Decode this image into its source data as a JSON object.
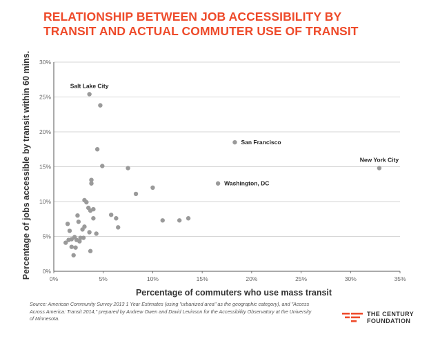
{
  "header": {
    "title_line1": "RELATIONSHIP BETWEEN JOB ACCESSIBILITY BY",
    "title_line2": "TRANSIT AND ACTUAL COMMUTER USE OF TRANSIT"
  },
  "footer": {
    "source": "Source:  American Community Survey 2013 1 Year Estimates (using \"urbanized area\" as the geographic category), and \"Access Across America: Transit 2014,\" prepared by Andrew Owen and David Levinson for the Accessibility Observatory at the University of Minnesota."
  },
  "logo": {
    "line1": "THE CENTURY",
    "line2": "FOUNDATION",
    "color": "#ee4b2b"
  },
  "colors": {
    "accent": "#ee4b2b",
    "point": "#9a9a9a",
    "grid": "#c8c8c8",
    "axis": "#555555"
  },
  "chart_data": {
    "type": "scatter",
    "title": "Relationship between job accessibility by transit and actual commuter use of transit",
    "xlabel": "Percentage of commuters who use mass transit",
    "ylabel": "Percentage of jobs accessible by transit within 60 mins.",
    "xlim": [
      0,
      35
    ],
    "ylim": [
      0,
      30
    ],
    "x_ticks": [
      0,
      5,
      10,
      15,
      20,
      25,
      30,
      35
    ],
    "x_tick_labels": [
      "0%",
      "5%",
      "10%",
      "15%",
      "20%",
      "25%",
      "30%",
      "35%"
    ],
    "y_ticks": [
      0,
      5,
      10,
      15,
      20,
      25,
      30
    ],
    "y_tick_labels": [
      "0%",
      "5%",
      "10%",
      "15%",
      "20%",
      "25%",
      "30%"
    ],
    "grid": "horizontal",
    "points": [
      {
        "x": 3.6,
        "y": 25.4,
        "label": "Salt Lake City"
      },
      {
        "x": 4.7,
        "y": 23.8
      },
      {
        "x": 18.3,
        "y": 18.5,
        "label": "San Francisco"
      },
      {
        "x": 32.9,
        "y": 14.8,
        "label": "New York City"
      },
      {
        "x": 16.6,
        "y": 12.6,
        "label": "Washington, DC"
      },
      {
        "x": 4.4,
        "y": 17.5
      },
      {
        "x": 4.9,
        "y": 15.1
      },
      {
        "x": 7.5,
        "y": 14.8
      },
      {
        "x": 10.0,
        "y": 12.0
      },
      {
        "x": 8.3,
        "y": 11.1
      },
      {
        "x": 3.8,
        "y": 13.1
      },
      {
        "x": 3.8,
        "y": 12.6
      },
      {
        "x": 3.1,
        "y": 10.2
      },
      {
        "x": 3.3,
        "y": 9.9
      },
      {
        "x": 3.5,
        "y": 9.1
      },
      {
        "x": 3.7,
        "y": 8.7
      },
      {
        "x": 4.0,
        "y": 8.9
      },
      {
        "x": 2.4,
        "y": 8.0
      },
      {
        "x": 5.8,
        "y": 8.1
      },
      {
        "x": 6.3,
        "y": 7.6
      },
      {
        "x": 4.0,
        "y": 7.6
      },
      {
        "x": 2.5,
        "y": 7.1
      },
      {
        "x": 1.4,
        "y": 6.8
      },
      {
        "x": 6.5,
        "y": 6.3
      },
      {
        "x": 3.1,
        "y": 6.4
      },
      {
        "x": 2.9,
        "y": 6.0
      },
      {
        "x": 1.6,
        "y": 5.8
      },
      {
        "x": 3.6,
        "y": 5.6
      },
      {
        "x": 4.3,
        "y": 5.4
      },
      {
        "x": 11.0,
        "y": 7.3
      },
      {
        "x": 12.7,
        "y": 7.3
      },
      {
        "x": 13.6,
        "y": 7.6
      },
      {
        "x": 2.1,
        "y": 4.9
      },
      {
        "x": 2.7,
        "y": 4.8
      },
      {
        "x": 3.0,
        "y": 4.8
      },
      {
        "x": 2.3,
        "y": 4.5
      },
      {
        "x": 2.6,
        "y": 4.3
      },
      {
        "x": 1.8,
        "y": 4.6
      },
      {
        "x": 1.5,
        "y": 4.5
      },
      {
        "x": 1.2,
        "y": 4.1
      },
      {
        "x": 1.8,
        "y": 3.5
      },
      {
        "x": 2.2,
        "y": 3.4
      },
      {
        "x": 3.7,
        "y": 2.9
      },
      {
        "x": 2.0,
        "y": 2.3
      }
    ]
  }
}
